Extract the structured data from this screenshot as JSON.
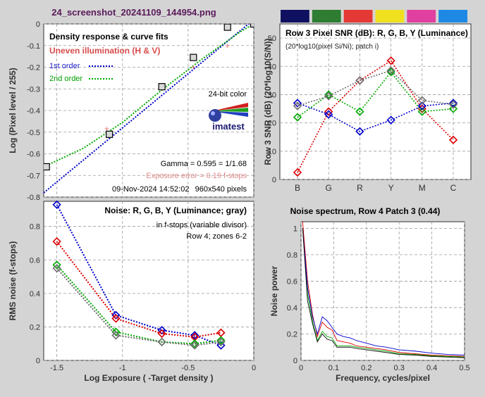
{
  "title": "24_screenshot_20241109_144954.png",
  "colors": {
    "plot_bg": "#ffffff",
    "window_bg": "#d4d4d4",
    "title": "#5a1a5a"
  },
  "chart_data": [
    {
      "id": "density",
      "type": "line",
      "title": "Density response & curve fits",
      "subtitle": "Uneven illumination (H & V)",
      "xlabel": "",
      "ylabel": "Log (Pixel level / 255)",
      "xlim": [
        -1.6,
        0
      ],
      "ylim": [
        -0.8,
        0
      ],
      "xticks": [
        -1.5,
        -1,
        -0.5,
        0
      ],
      "xtick_labels": [
        "",
        "",
        "",
        ""
      ],
      "yticks": [
        0,
        -0.1,
        -0.2,
        -0.3,
        -0.4,
        -0.5,
        -0.6,
        -0.7,
        -0.8
      ],
      "ytick_labels": [
        "0",
        "-0.1",
        "-0.2",
        "-0.3",
        "-0.4",
        "-0.5",
        "-0.6",
        "-0.7",
        "-0.8"
      ],
      "grid": true,
      "legend": [
        "1st order",
        "2nd order"
      ],
      "notes": {
        "bit_depth": "24-bit color",
        "logo": "imatest",
        "gamma": "Gamma = 0.595 = 1/1.68",
        "exposure_error": "Exposure error = 0.19 f-stops",
        "datetime": "09-Nov-2024 14:52:02",
        "dims": "960x540 pixels"
      },
      "points_x": [
        -1.58,
        -1.1,
        -0.7,
        -0.46,
        -0.2,
        0.0
      ],
      "points_y": [
        -0.66,
        -0.51,
        -0.29,
        -0.155,
        -0.015,
        0.0
      ],
      "illum_x": [
        -1.12,
        -0.46,
        -0.2
      ],
      "illum_y": [
        -0.485,
        -0.2,
        -0.1
      ],
      "series": [
        {
          "name": "1st order",
          "color": "#0000cc",
          "x": [
            -1.6,
            0.0
          ],
          "y": [
            -0.78,
            0.02
          ]
        },
        {
          "name": "2nd order",
          "color": "#00aa00",
          "x": [
            -1.6,
            -1.3,
            -1.0,
            -0.7,
            -0.4,
            -0.1,
            0.0
          ],
          "y": [
            -0.66,
            -0.575,
            -0.455,
            -0.305,
            -0.165,
            -0.035,
            0.0
          ]
        }
      ]
    },
    {
      "id": "snr",
      "type": "line",
      "title": "Row 3 Pixel SNR (dB): R, G, B, Y (Luminance)",
      "subtitle": "(20*log10(pixel Si/Ni); patch i)",
      "ylabel": "Row 3 SNR (dB) (20*log10(S/N))",
      "categories": [
        "B",
        "G",
        "R",
        "Y",
        "M",
        "C"
      ],
      "ylim": [
        0,
        55
      ],
      "yticks": [
        0,
        10,
        20,
        30,
        40,
        50
      ],
      "grid": true,
      "swatches": [
        "#101060",
        "#2e7d32",
        "#e53935",
        "#f0e020",
        "#e040a0",
        "#1e88e5"
      ],
      "series": [
        {
          "name": "R",
          "color": "#dd0000",
          "values": [
            2.5,
            24,
            35,
            42,
            25,
            14
          ]
        },
        {
          "name": "G",
          "color": "#00aa00",
          "values": [
            22,
            30,
            24,
            38,
            24,
            25
          ]
        },
        {
          "name": "B",
          "color": "#0000cc",
          "values": [
            27,
            23,
            17,
            21,
            26,
            27
          ]
        },
        {
          "name": "Y",
          "color": "#707070",
          "values": [
            26,
            29.5,
            35,
            38.5,
            28,
            26.5
          ]
        }
      ]
    },
    {
      "id": "noise",
      "type": "line",
      "title": "Noise: R, G, B, Y (Luminance; gray)",
      "subtitle": "in f-stops (variable divisor)",
      "note": "Row 4; zones 6-2",
      "xlabel": "Log Exposure ( -Target density )",
      "ylabel": "RMS noise (f-stops)",
      "xlim": [
        -1.6,
        0
      ],
      "ylim": [
        0,
        0.95
      ],
      "xticks": [
        -1.5,
        -1,
        -0.5,
        0
      ],
      "xtick_labels": [
        "-1.5",
        "-1",
        "-0.5",
        "0"
      ],
      "yticks": [
        0,
        0.2,
        0.4,
        0.6,
        0.8
      ],
      "ytick_labels": [
        "0",
        "0.2",
        "0.4",
        "0.6",
        "0.8"
      ],
      "grid": true,
      "x": [
        -1.5,
        -1.05,
        -0.7,
        -0.45,
        -0.25
      ],
      "series": [
        {
          "name": "B",
          "color": "#0000cc",
          "values": [
            0.93,
            0.27,
            0.18,
            0.15,
            0.09
          ]
        },
        {
          "name": "R",
          "color": "#dd0000",
          "values": [
            0.71,
            0.25,
            0.16,
            0.14,
            0.165
          ]
        },
        {
          "name": "G",
          "color": "#00aa00",
          "values": [
            0.57,
            0.17,
            0.11,
            0.1,
            0.12
          ]
        },
        {
          "name": "Y",
          "color": "#707070",
          "values": [
            0.55,
            0.15,
            0.11,
            0.09,
            0.11
          ]
        }
      ]
    },
    {
      "id": "spectrum",
      "type": "line",
      "title": "Noise spectrum, Row 4 Patch 3 (0.44)",
      "xlabel": "Frequency, cycles/pixel",
      "ylabel": "Noise power",
      "xlim": [
        0,
        0.5
      ],
      "ylim": [
        0,
        1.05
      ],
      "xticks": [
        0,
        0.1,
        0.2,
        0.3,
        0.4,
        0.5
      ],
      "xtick_labels": [
        "0",
        "0.1",
        "0.2",
        "0.3",
        "0.4",
        "0.5"
      ],
      "yticks": [
        0,
        0.2,
        0.4,
        0.6,
        0.8,
        1
      ],
      "ytick_labels": [
        "0",
        "0.2",
        "0.4",
        "0.6",
        "0.8",
        "1"
      ],
      "grid": true,
      "x": [
        0.005,
        0.02,
        0.035,
        0.05,
        0.065,
        0.08,
        0.095,
        0.11,
        0.13,
        0.15,
        0.17,
        0.2,
        0.23,
        0.26,
        0.3,
        0.35,
        0.4,
        0.45,
        0.5
      ],
      "series": [
        {
          "name": "R",
          "color": "#dd0000",
          "values": [
            1.05,
            0.6,
            0.35,
            0.18,
            0.29,
            0.25,
            0.23,
            0.15,
            0.14,
            0.13,
            0.11,
            0.1,
            0.09,
            0.08,
            0.06,
            0.05,
            0.04,
            0.035,
            0.03
          ]
        },
        {
          "name": "G",
          "color": "#00aa00",
          "values": [
            1.0,
            0.5,
            0.3,
            0.15,
            0.22,
            0.18,
            0.17,
            0.11,
            0.11,
            0.11,
            0.1,
            0.09,
            0.08,
            0.07,
            0.05,
            0.045,
            0.035,
            0.03,
            0.025
          ]
        },
        {
          "name": "B",
          "color": "#0000cc",
          "values": [
            1.0,
            0.55,
            0.33,
            0.2,
            0.33,
            0.3,
            0.25,
            0.2,
            0.18,
            0.17,
            0.15,
            0.13,
            0.11,
            0.1,
            0.08,
            0.07,
            0.055,
            0.045,
            0.04
          ]
        },
        {
          "name": "Y",
          "color": "#111111",
          "values": [
            1.0,
            0.45,
            0.28,
            0.14,
            0.2,
            0.16,
            0.15,
            0.1,
            0.1,
            0.1,
            0.09,
            0.08,
            0.07,
            0.06,
            0.045,
            0.04,
            0.03,
            0.025,
            0.02
          ]
        }
      ]
    }
  ]
}
